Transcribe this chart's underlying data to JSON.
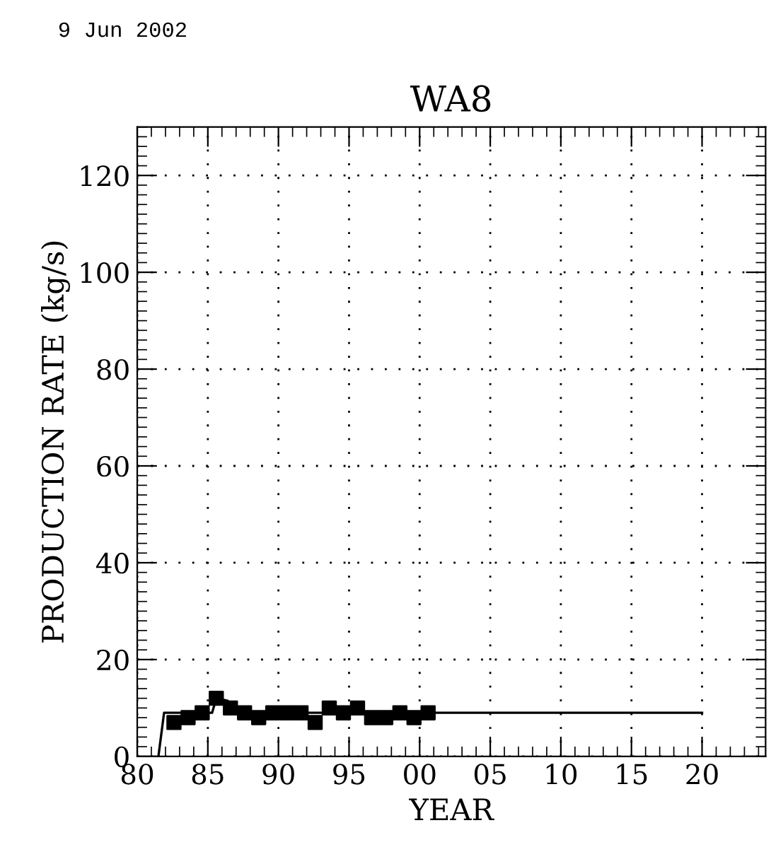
{
  "chart_data": {
    "type": "scatter",
    "title": "WA8",
    "xlabel": "YEAR",
    "ylabel": "PRODUCTION RATE (kg/s)",
    "annotations": [
      "9 Jun 2002"
    ],
    "series": [
      {
        "type": "line",
        "color": "#000000",
        "marker": "none",
        "x": [
          1981.5,
          1981.9,
          1985.3,
          1985.6,
          1986.4,
          1987.0,
          2020.0
        ],
        "values": [
          0,
          9,
          9,
          12,
          11.5,
          9,
          9
        ]
      },
      {
        "color": "#000000",
        "marker": "square",
        "x": [
          1982.6,
          1983.6,
          1984.6,
          1985.6,
          1986.6,
          1987.6,
          1988.6,
          1989.6,
          1990.6,
          1991.6,
          1992.6,
          1993.6,
          1994.6,
          1995.6,
          1996.6,
          1997.6,
          1998.6,
          1999.6,
          2000.6
        ],
        "values": [
          7,
          8,
          9,
          12,
          10,
          9,
          8,
          9,
          9,
          9,
          7,
          10,
          9,
          10,
          8,
          8,
          9,
          8,
          9
        ]
      }
    ],
    "xlim": [
      1980,
      2024.5
    ],
    "ylim": [
      0,
      130
    ],
    "xticks": [
      {
        "value": 1980,
        "label": "80"
      },
      {
        "value": 1985,
        "label": "85"
      },
      {
        "value": 1990,
        "label": "90"
      },
      {
        "value": 1995,
        "label": "95"
      },
      {
        "value": 2000,
        "label": "00"
      },
      {
        "value": 2005,
        "label": "05"
      },
      {
        "value": 2010,
        "label": "10"
      },
      {
        "value": 2015,
        "label": "15"
      },
      {
        "value": 2020,
        "label": "20"
      }
    ],
    "yticks": [
      0,
      20,
      40,
      60,
      80,
      100,
      120
    ],
    "grid": true
  }
}
